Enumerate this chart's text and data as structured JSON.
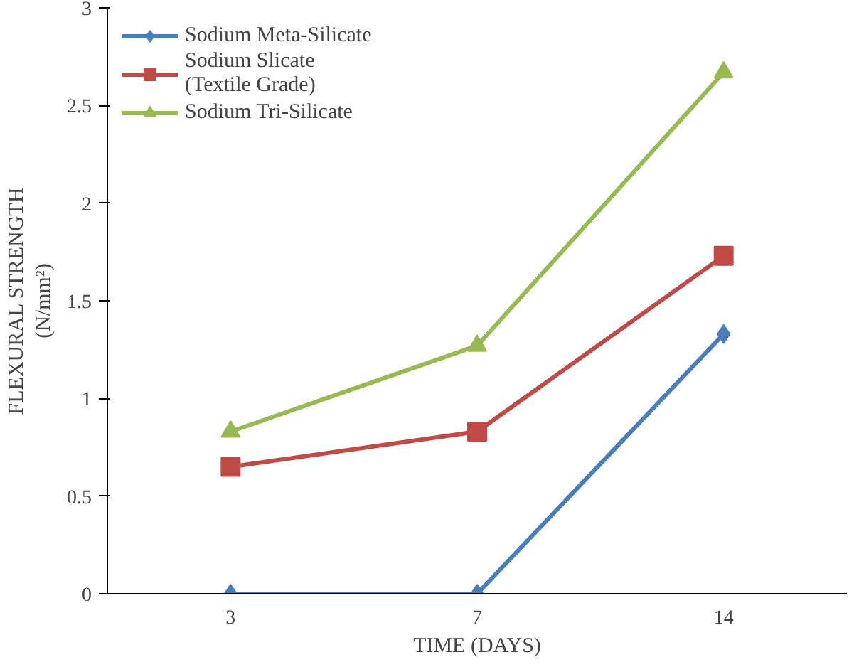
{
  "chart_data": {
    "type": "line",
    "xlabel": "TIME (DAYS)",
    "ylabel": "FLEXURAL STRENGTH\n(N/mm²)",
    "categories": [
      "3",
      "7",
      "14"
    ],
    "ylim": [
      0,
      3
    ],
    "yticks": [
      0,
      0.5,
      1,
      1.5,
      2,
      2.5,
      3
    ],
    "grid": false,
    "legend": "top left",
    "line_style": "solid",
    "series": [
      {
        "name": "Sodium Meta-Silicate",
        "color": "#4a7ebb",
        "marker": "diamond",
        "values": [
          0,
          0,
          1.33
        ]
      },
      {
        "name": "Sodium Slicate\n(Textile Grade)",
        "color": "#be4b48",
        "marker": "square",
        "values": [
          0.65,
          0.83,
          1.73
        ]
      },
      {
        "name": "Sodium Tri-Silicate",
        "color": "#98b954",
        "marker": "triangle",
        "values": [
          0.83,
          1.27,
          2.67
        ]
      }
    ]
  }
}
